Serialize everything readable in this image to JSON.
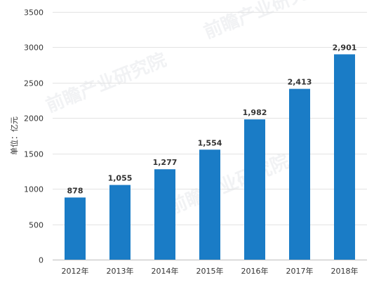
{
  "chart_data": {
    "type": "bar",
    "categories": [
      "2012年",
      "2013年",
      "2014年",
      "2015年",
      "2016年",
      "2017年",
      "2018年"
    ],
    "values": [
      878,
      1055,
      1277,
      1554,
      1982,
      2413,
      2901
    ],
    "data_labels": [
      "878",
      "1,055",
      "1,277",
      "1,554",
      "1,982",
      "2,413",
      "2,901"
    ],
    "ylabel": "单位：亿元",
    "ylim": [
      0,
      3500
    ],
    "yticks": [
      0,
      500,
      1000,
      1500,
      2000,
      2500,
      3000,
      3500
    ],
    "grid": true,
    "bar_color": "#1a7cc6",
    "watermark": "前瞻产业研究院"
  }
}
